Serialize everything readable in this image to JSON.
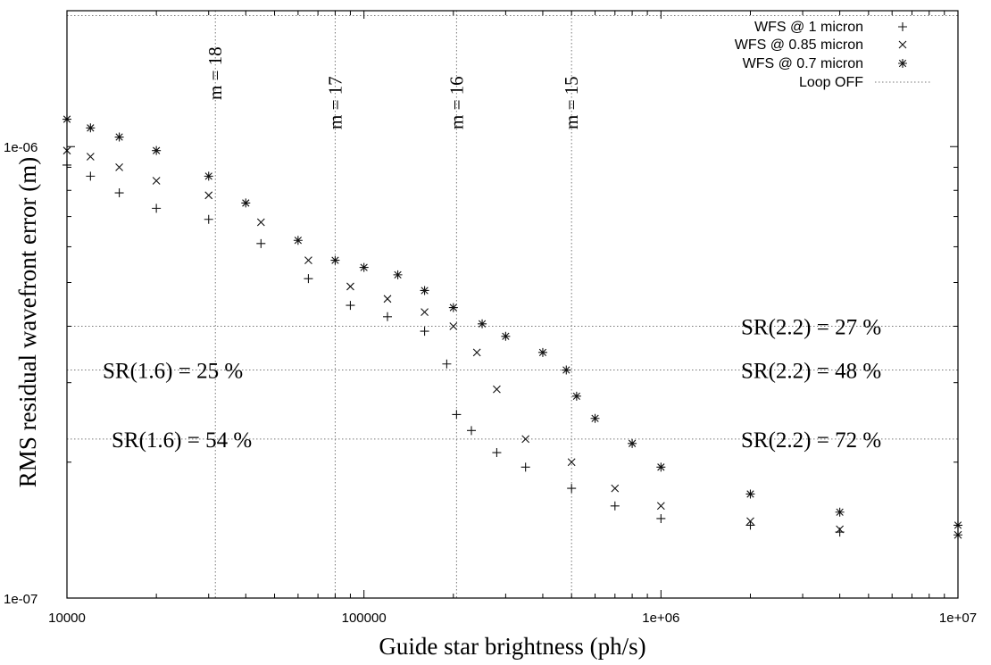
{
  "chart_data": {
    "type": "scatter",
    "title": "",
    "xlabel": "Guide star brightness (ph/s)",
    "ylabel": "RMS residual wavefront error (m)",
    "x_scale": "log",
    "y_scale": "log",
    "xlim": [
      10000,
      10000000
    ],
    "ylim": [
      1e-07,
      2e-06
    ],
    "grid": "vertical lines at magnitude positions, horizontal lines at Strehl levels",
    "x_tick_labels": [
      "10000",
      "100000",
      "1e+06",
      "1e+07"
    ],
    "y_tick_labels": [
      "1e-07",
      "1e-06"
    ],
    "legend": {
      "position": "top-right",
      "entries": [
        {
          "label": "WFS @ 1 micron",
          "marker": "+"
        },
        {
          "label": "WFS @ 0.85 micron",
          "marker": "x"
        },
        {
          "label": "WFS @ 0.7 micron",
          "marker": "*"
        },
        {
          "label": "Loop OFF",
          "marker": "dotted-line"
        }
      ]
    },
    "magnitude_markers": [
      {
        "label": "m = 18",
        "x": 31600
      },
      {
        "label": "m = 17",
        "x": 80000
      },
      {
        "label": "m = 16",
        "x": 205000
      },
      {
        "label": "m = 15",
        "x": 500000
      }
    ],
    "strehl_levels": [
      {
        "y": 4e-07,
        "left_label": "",
        "right_label": "SR(2.2) = 27 %"
      },
      {
        "y": 3.2e-07,
        "left_label": "SR(1.6) = 25 %",
        "right_label": "SR(2.2) = 48 %"
      },
      {
        "y": 2.25e-07,
        "left_label": "SR(1.6) = 54 %",
        "right_label": "SR(2.2) = 72 %"
      }
    ],
    "loop_off_level": 1.95e-06,
    "series": [
      {
        "name": "WFS @ 1 micron",
        "marker": "+",
        "x": [
          10000,
          12000,
          15000,
          20000,
          30000,
          45000,
          65000,
          90000,
          120000,
          160000,
          190000,
          205000,
          230000,
          280000,
          350000,
          500000,
          700000,
          1000000,
          2000000,
          4000000,
          10000000
        ],
        "y": [
          9.1e-07,
          8.6e-07,
          7.9e-07,
          7.3e-07,
          6.9e-07,
          6.1e-07,
          5.1e-07,
          4.45e-07,
          4.2e-07,
          3.9e-07,
          3.3e-07,
          2.55e-07,
          2.35e-07,
          2.1e-07,
          1.95e-07,
          1.75e-07,
          1.6e-07,
          1.5e-07,
          1.45e-07,
          1.4e-07,
          1.38e-07
        ]
      },
      {
        "name": "WFS @ 0.85 micron",
        "marker": "x",
        "x": [
          10000,
          12000,
          15000,
          20000,
          30000,
          45000,
          65000,
          90000,
          120000,
          160000,
          200000,
          240000,
          280000,
          350000,
          500000,
          700000,
          1000000,
          2000000,
          4000000,
          10000000
        ],
        "y": [
          9.8e-07,
          9.5e-07,
          9e-07,
          8.4e-07,
          7.8e-07,
          6.8e-07,
          5.6e-07,
          4.9e-07,
          4.6e-07,
          4.3e-07,
          4e-07,
          3.5e-07,
          2.9e-07,
          2.25e-07,
          2e-07,
          1.75e-07,
          1.6e-07,
          1.48e-07,
          1.42e-07,
          1.38e-07
        ]
      },
      {
        "name": "WFS @ 0.7 micron",
        "marker": "*",
        "x": [
          10000,
          12000,
          15000,
          20000,
          30000,
          40000,
          60000,
          80000,
          100000,
          130000,
          160000,
          200000,
          250000,
          300000,
          400000,
          480000,
          520000,
          600000,
          800000,
          1000000,
          2000000,
          4000000,
          10000000
        ],
        "y": [
          1.15e-06,
          1.1e-06,
          1.05e-06,
          9.8e-07,
          8.6e-07,
          7.5e-07,
          6.2e-07,
          5.6e-07,
          5.4e-07,
          5.2e-07,
          4.8e-07,
          4.4e-07,
          4.05e-07,
          3.8e-07,
          3.5e-07,
          3.2e-07,
          2.8e-07,
          2.5e-07,
          2.2e-07,
          1.95e-07,
          1.7e-07,
          1.55e-07,
          1.45e-07
        ]
      }
    ]
  }
}
